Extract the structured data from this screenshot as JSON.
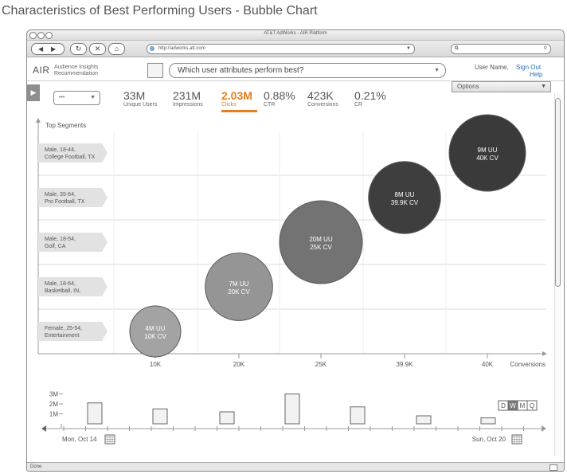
{
  "page_title": "Characteristics of Best Performing Users - Bubble Chart",
  "window": {
    "title": "AT&T AdWorks - AIR Platform",
    "url": "http://adworks.att.com",
    "search_prefix": "G"
  },
  "app": {
    "brand": "AIR",
    "brand_sub_1": "Audience Insights",
    "brand_sub_2": "Recommendation",
    "question": "Which user attributes perform best?",
    "user_name": "User Name,",
    "sign_out": "Sign Out",
    "help": "Help",
    "options": "Options",
    "selector_value": "•••"
  },
  "metrics": [
    {
      "value": "33M",
      "label": "Unique Users"
    },
    {
      "value": "231M",
      "label": "Impressions"
    },
    {
      "value": "2.03M",
      "label": "Clicks",
      "active": true
    },
    {
      "value": "0.88%",
      "label": "CTR"
    },
    {
      "value": "423K",
      "label": "Conversions"
    },
    {
      "value": "0.21%",
      "label": "CR"
    }
  ],
  "top_segments_label": "Top Segments",
  "chart_data": {
    "type": "scatter",
    "xlabel": "Conversions",
    "x_ticks": [
      "10K",
      "20K",
      "25K",
      "39.9K",
      "40K"
    ],
    "segments": [
      {
        "line1": "Male, 18-44,",
        "line2": "College Football, TX"
      },
      {
        "line1": "Male, 35-64,",
        "line2": "Pro Football, TX"
      },
      {
        "line1": "Male, 18-54,",
        "line2": "Golf, CA"
      },
      {
        "line1": "Male, 18-64,",
        "line2": "Basketball, IN,"
      },
      {
        "line1": "Female, 25-54,",
        "line2": "Entertainment"
      }
    ],
    "bubbles": [
      {
        "segment": "Female, 25-54, Entertainment",
        "users": "4M UU",
        "conversions": "10K CV",
        "users_m": 4,
        "conversions_k": 10,
        "x_index": 0,
        "row": 4,
        "color": "#a3a3a3"
      },
      {
        "segment": "Male, 18-64, Basketball, IN",
        "users": "7M UU",
        "conversions": "20K CV",
        "users_m": 7,
        "conversions_k": 20,
        "x_index": 1,
        "row": 3,
        "color": "#959595"
      },
      {
        "segment": "Male, 18-54, Golf, CA",
        "users": "20M UU",
        "conversions": "25K CV",
        "users_m": 20,
        "conversions_k": 25,
        "x_index": 2,
        "row": 2,
        "color": "#737373"
      },
      {
        "segment": "Male, 35-64, Pro Football, TX",
        "users": "8M UU",
        "conversions": "39.9K CV",
        "users_m": 8,
        "conversions_k": 39.9,
        "x_index": 3,
        "row": 1,
        "color": "#3e3e3e"
      },
      {
        "segment": "Male, 18-44, College Football, TX",
        "users": "9M UU",
        "conversions": "40K CV",
        "users_m": 9,
        "conversions_k": 40,
        "x_index": 4,
        "row": 0,
        "color": "#3a3a3a"
      }
    ]
  },
  "timeline": {
    "y_ticks": [
      "3M",
      "2M",
      "1M"
    ],
    "bars": [
      2.1,
      1.5,
      1.2,
      3.0,
      1.7,
      0.8,
      0.6
    ],
    "start_label": "Mon, Oct 14",
    "end_label": "Sun, Oct 20",
    "period_buttons": [
      "D",
      "W",
      "M",
      "Q"
    ],
    "active_period": "W"
  },
  "status": "Done",
  "colors": {
    "accent": "#e87e1e",
    "link": "#2b6fb6",
    "segment_label_bg": "#e2e2e2",
    "grid": "#dddddd"
  }
}
